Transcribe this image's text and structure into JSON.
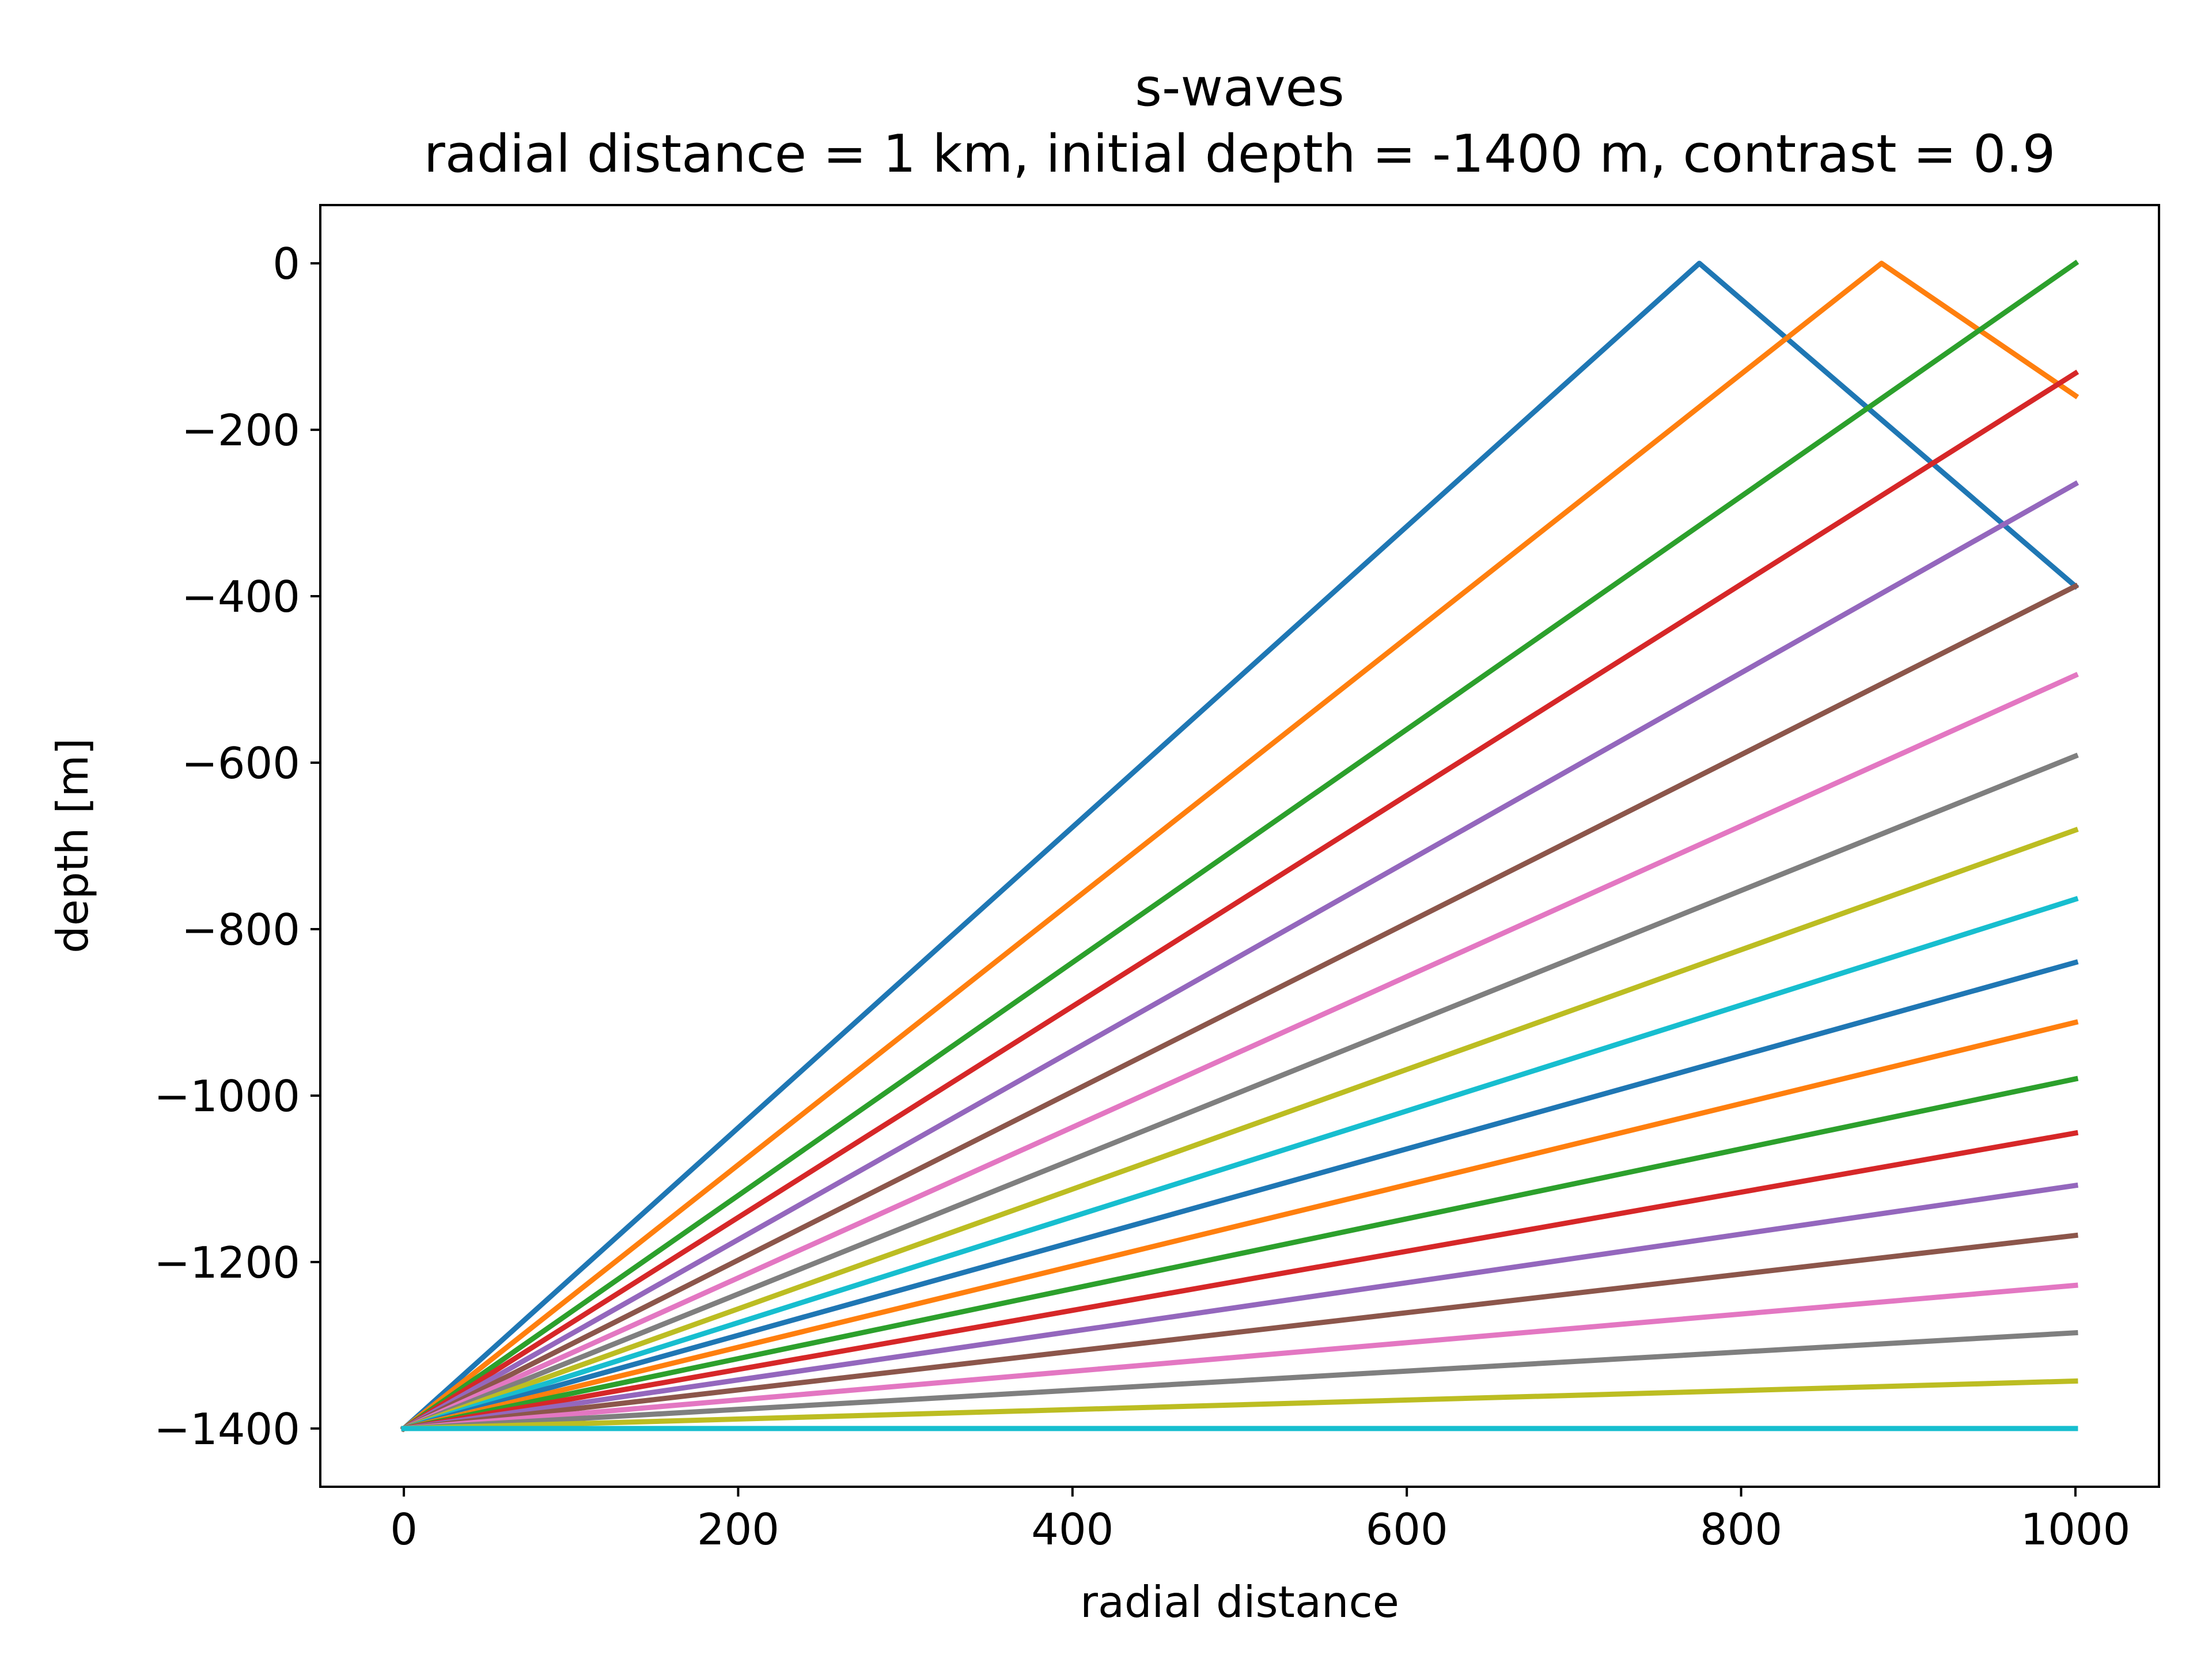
{
  "chart_data": {
    "type": "line",
    "title": "s-waves",
    "subtitle": "radial distance = 1 km, initial depth = -1400 m, contrast = 0.9",
    "xlabel": "radial distance",
    "ylabel": "depth [m]",
    "xlim": [
      -50,
      1050
    ],
    "ylim": [
      -1470,
      70
    ],
    "x_ticks": [
      0,
      200,
      400,
      600,
      800,
      1000
    ],
    "x_tick_labels": [
      "0",
      "200",
      "400",
      "600",
      "800",
      "1000"
    ],
    "y_ticks": [
      0,
      -200,
      -400,
      -600,
      -800,
      -1000,
      -1200,
      -1400
    ],
    "y_tick_labels": [
      "0",
      "−200",
      "−400",
      "−600",
      "−800",
      "−1000",
      "−1200",
      "−1400"
    ],
    "grid": false,
    "legend": "none",
    "series": [
      {
        "color": "#1f77b4",
        "x": [
          0,
          775,
          1000
        ],
        "y": [
          -1400,
          0,
          -388
        ]
      },
      {
        "color": "#ff7f0e",
        "x": [
          0,
          884,
          1000
        ],
        "y": [
          -1400,
          0,
          -159
        ]
      },
      {
        "color": "#2ca02c",
        "x": [
          0,
          1000
        ],
        "y": [
          -1400,
          0
        ]
      },
      {
        "color": "#d62728",
        "x": [
          0,
          1000
        ],
        "y": [
          -1400,
          -132
        ]
      },
      {
        "color": "#9467bd",
        "x": [
          0,
          1000
        ],
        "y": [
          -1400,
          -265
        ]
      },
      {
        "color": "#8c564b",
        "x": [
          0,
          1000
        ],
        "y": [
          -1400,
          -388
        ]
      },
      {
        "color": "#e377c2",
        "x": [
          0,
          1000
        ],
        "y": [
          -1400,
          -495
        ]
      },
      {
        "color": "#7f7f7f",
        "x": [
          0,
          1000
        ],
        "y": [
          -1400,
          -592
        ]
      },
      {
        "color": "#bcbd22",
        "x": [
          0,
          1000
        ],
        "y": [
          -1400,
          -681
        ]
      },
      {
        "color": "#17becf",
        "x": [
          0,
          1000
        ],
        "y": [
          -1400,
          -764
        ]
      },
      {
        "color": "#1f77b4",
        "x": [
          0,
          1000
        ],
        "y": [
          -1400,
          -840
        ]
      },
      {
        "color": "#ff7f0e",
        "x": [
          0,
          1000
        ],
        "y": [
          -1400,
          -912
        ]
      },
      {
        "color": "#2ca02c",
        "x": [
          0,
          1000
        ],
        "y": [
          -1400,
          -980
        ]
      },
      {
        "color": "#d62728",
        "x": [
          0,
          1000
        ],
        "y": [
          -1400,
          -1045
        ]
      },
      {
        "color": "#9467bd",
        "x": [
          0,
          1000
        ],
        "y": [
          -1400,
          -1108
        ]
      },
      {
        "color": "#8c564b",
        "x": [
          0,
          1000
        ],
        "y": [
          -1400,
          -1168
        ]
      },
      {
        "color": "#e377c2",
        "x": [
          0,
          1000
        ],
        "y": [
          -1400,
          -1228
        ]
      },
      {
        "color": "#7f7f7f",
        "x": [
          0,
          1000
        ],
        "y": [
          -1400,
          -1285
        ]
      },
      {
        "color": "#bcbd22",
        "x": [
          0,
          1000
        ],
        "y": [
          -1400,
          -1343
        ]
      },
      {
        "color": "#17becf",
        "x": [
          0,
          1000
        ],
        "y": [
          -1400,
          -1400
        ]
      }
    ]
  }
}
